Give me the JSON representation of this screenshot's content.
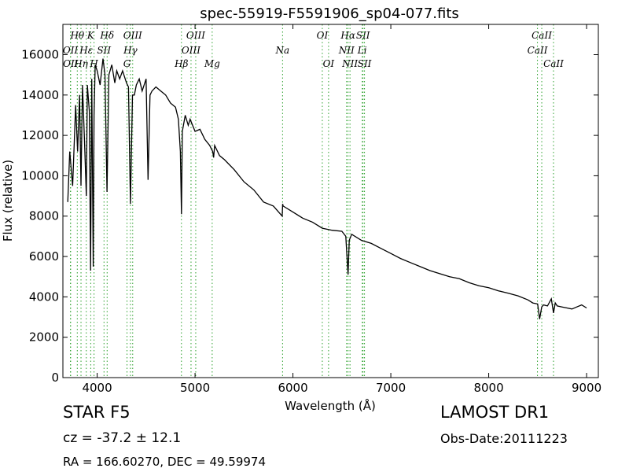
{
  "chart_data": {
    "type": "line",
    "title": "spec-55919-F5591906_sp04-077.fits",
    "xlabel": "Wavelength (Å)",
    "ylabel": "Flux (relative)",
    "xlim": [
      3650,
      9120
    ],
    "ylim": [
      0,
      17500
    ],
    "xticks": [
      4000,
      5000,
      6000,
      7000,
      8000,
      9000
    ],
    "yticks": [
      0,
      2000,
      4000,
      6000,
      8000,
      10000,
      12000,
      14000,
      16000
    ],
    "grid": false,
    "line_color": "#000000",
    "marker_line_color": "#2ca02c",
    "series": [
      {
        "x": [
          3700,
          3720,
          3750,
          3780,
          3800,
          3820,
          3835,
          3850,
          3870,
          3889,
          3900,
          3920,
          3933,
          3945,
          3960,
          3968,
          3980,
          4000,
          4030,
          4060,
          4080,
          4101,
          4120,
          4150,
          4180,
          4200,
          4230,
          4260,
          4300,
          4320,
          4340,
          4361,
          4380,
          4400,
          4430,
          4460,
          4500,
          4520,
          4540,
          4560,
          4600,
          4650,
          4700,
          4750,
          4800,
          4830,
          4850,
          4861,
          4870,
          4900,
          4930,
          4950,
          5000,
          5050,
          5100,
          5150,
          5180,
          5190,
          5200,
          5250,
          5300,
          5400,
          5500,
          5600,
          5700,
          5800,
          5890,
          5895,
          5900,
          6000,
          6100,
          6200,
          6300,
          6400,
          6500,
          6540,
          6550,
          6563,
          6575,
          6600,
          6700,
          6800,
          6900,
          7000,
          7100,
          7200,
          7300,
          7400,
          7500,
          7600,
          7700,
          7800,
          7900,
          8000,
          8100,
          8200,
          8300,
          8400,
          8450,
          8500,
          8520,
          8542,
          8560,
          8600,
          8640,
          8662,
          8680,
          8700,
          8750,
          8800,
          8850,
          8900,
          8950,
          9000
        ],
        "y": [
          8700,
          11200,
          9500,
          13500,
          11200,
          14000,
          9500,
          14500,
          11800,
          9000,
          14500,
          13200,
          5300,
          14800,
          5500,
          13000,
          15500,
          15200,
          14500,
          15800,
          15000,
          9200,
          15000,
          15500,
          14600,
          15200,
          14800,
          15200,
          14600,
          14400,
          8600,
          14000,
          14000,
          14500,
          14800,
          14200,
          14800,
          9800,
          14000,
          14200,
          14400,
          14200,
          14000,
          13600,
          13400,
          12800,
          11200,
          8100,
          12200,
          13000,
          12500,
          12800,
          12200,
          12300,
          11800,
          11500,
          11200,
          10900,
          11500,
          11000,
          10800,
          10300,
          9700,
          9300,
          8700,
          8500,
          8000,
          8600,
          8500,
          8200,
          7900,
          7700,
          7400,
          7300,
          7250,
          7000,
          6200,
          5100,
          6800,
          7100,
          6800,
          6650,
          6400,
          6150,
          5900,
          5700,
          5500,
          5300,
          5150,
          5000,
          4900,
          4700,
          4550,
          4450,
          4300,
          4180,
          4050,
          3850,
          3700,
          3650,
          2900,
          3500,
          3600,
          3550,
          3900,
          3200,
          3700,
          3550,
          3500,
          3450,
          3400,
          3500,
          3600,
          3450
        ]
      }
    ],
    "line_markers": [
      {
        "label": "Hθ",
        "x": 3797,
        "tier": 0
      },
      {
        "label": "OII",
        "x": 3727,
        "tier": 1
      },
      {
        "label": "OII",
        "x": 3729,
        "tier": 2
      },
      {
        "label": "Hη",
        "x": 3835,
        "tier": 2
      },
      {
        "label": "Hε",
        "x": 3889,
        "tier": 1
      },
      {
        "label": "K",
        "x": 3934,
        "tier": 0
      },
      {
        "label": "H",
        "x": 3968,
        "tier": 2
      },
      {
        "label": "SII",
        "x": 4070,
        "tier": 1
      },
      {
        "label": "Hδ",
        "x": 4102,
        "tier": 0
      },
      {
        "label": "OIII",
        "x": 4363,
        "tier": 0
      },
      {
        "label": "Hγ",
        "x": 4340,
        "tier": 1
      },
      {
        "label": "G",
        "x": 4305,
        "tier": 2
      },
      {
        "label": "OIII",
        "x": 5007,
        "tier": 0
      },
      {
        "label": "OIII",
        "x": 4959,
        "tier": 1
      },
      {
        "label": "Hβ",
        "x": 4861,
        "tier": 2
      },
      {
        "label": "Mg",
        "x": 5175,
        "tier": 2
      },
      {
        "label": "Na",
        "x": 5894,
        "tier": 1
      },
      {
        "label": "OI",
        "x": 6300,
        "tier": 0
      },
      {
        "label": "OI",
        "x": 6364,
        "tier": 2
      },
      {
        "label": "Hα",
        "x": 6563,
        "tier": 0
      },
      {
        "label": "NII",
        "x": 6548,
        "tier": 1
      },
      {
        "label": "NII",
        "x": 6583,
        "tier": 2
      },
      {
        "label": "SII",
        "x": 6716,
        "tier": 0
      },
      {
        "label": "Li",
        "x": 6708,
        "tier": 1
      },
      {
        "label": "SII",
        "x": 6731,
        "tier": 2
      },
      {
        "label": "CaII",
        "x": 8542,
        "tier": 0
      },
      {
        "label": "CaII",
        "x": 8498,
        "tier": 1
      },
      {
        "label": "CaII",
        "x": 8662,
        "tier": 2
      }
    ]
  },
  "info": {
    "object_class": "STAR   F5",
    "cz": "cz = -37.2 ± 12.1",
    "radec": "RA = 166.60270, DEC = 49.59974",
    "survey": "LAMOST DR1",
    "obs_date": "Obs-Date:20111223"
  }
}
